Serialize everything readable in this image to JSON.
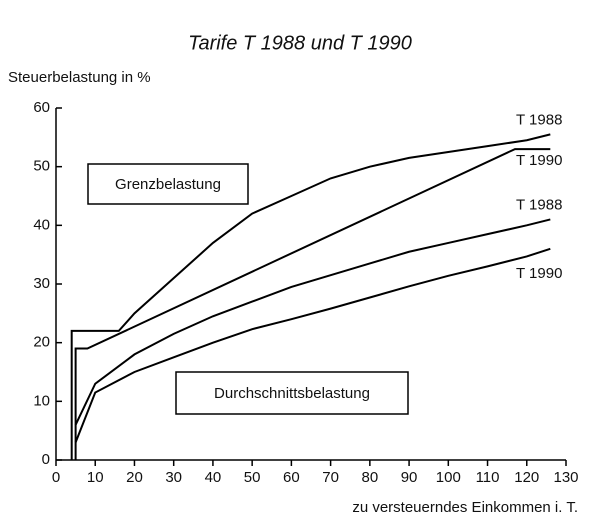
{
  "chart_data": {
    "type": "line",
    "title": "Tarife T 1988 und T 1990",
    "y_label": "Steuerbelastung in %",
    "x_label": "zu versteuerndes Einkommen i. T.",
    "annotations": [
      "Grenzbelastung",
      "Durchschnittsbelastung"
    ],
    "xlim": [
      0,
      130
    ],
    "ylim": [
      0,
      60
    ],
    "xticks": [
      0,
      10,
      20,
      30,
      40,
      50,
      60,
      70,
      80,
      90,
      100,
      110,
      120,
      130
    ],
    "yticks": [
      0,
      10,
      20,
      30,
      40,
      50,
      60
    ],
    "grid": false,
    "series": [
      {
        "name": "T 1988",
        "color": "#000000",
        "x": [
          4,
          4,
          16,
          20,
          30,
          40,
          50,
          60,
          70,
          80,
          90,
          100,
          110,
          120,
          126
        ],
        "values": [
          0,
          22,
          22,
          25,
          31,
          37,
          42,
          45,
          48,
          50,
          51.5,
          52.5,
          53.5,
          54.5,
          55.5
        ]
      },
      {
        "name": "T 1990",
        "color": "#000000",
        "x": [
          5,
          5,
          8,
          117,
          126
        ],
        "values": [
          0,
          19,
          19,
          53,
          53
        ]
      },
      {
        "name": "T 1988",
        "color": "#000000",
        "x": [
          5,
          10,
          20,
          30,
          40,
          50,
          60,
          70,
          80,
          90,
          100,
          110,
          120,
          126
        ],
        "values": [
          6,
          13,
          18,
          21.5,
          24.5,
          27,
          29.5,
          31.5,
          33.5,
          35.5,
          37,
          38.5,
          40,
          41
        ]
      },
      {
        "name": "T 1990",
        "color": "#000000",
        "x": [
          5,
          10,
          20,
          30,
          40,
          50,
          60,
          70,
          80,
          90,
          100,
          110,
          120,
          126
        ],
        "values": [
          3,
          11.5,
          15,
          17.5,
          20,
          22.3,
          24,
          25.8,
          27.7,
          29.6,
          31.4,
          33,
          34.7,
          36
        ]
      }
    ]
  }
}
